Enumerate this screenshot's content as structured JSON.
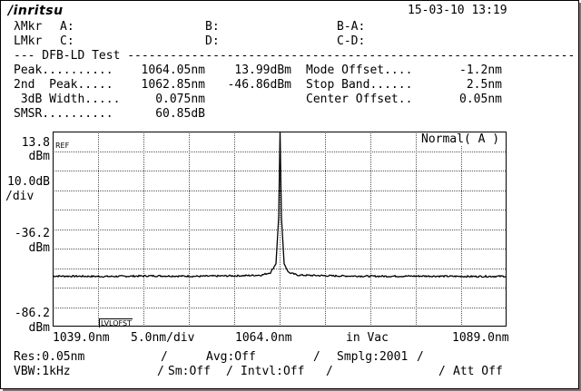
{
  "header": {
    "brand": "/inritsu",
    "datetime": "15-03-10 13:19"
  },
  "markers": {
    "lambda_label": "λMkr",
    "l_label": "LMkr",
    "a": "A:",
    "b": "B:",
    "ba": "B-A:",
    "c": "C:",
    "d": "D:",
    "cd": "C-D:"
  },
  "section_title": "--- DFB-LD Test ---------------------------------------------------------------",
  "results": {
    "peak_label": "Peak..........",
    "peak_wl": "1064.05nm",
    "peak_lvl": "13.99dBm",
    "mode_offset_label": "Mode Offset....",
    "mode_offset": "-1.2nm",
    "peak2_label": "2nd  Peak.....",
    "peak2_wl": "1062.85nm",
    "peak2_lvl": "-46.86dBm",
    "stop_band_label": "Stop Band......",
    "stop_band": "2.5nm",
    "width_label": " 3dB Width.....",
    "width": "0.075nm",
    "center_offset_label": "Center Offset..",
    "center_offset": "0.05nm",
    "smsr_label": "SMSR..........",
    "smsr": "60.85dB"
  },
  "yaxis": {
    "ref_value": "13.8",
    "ref_unit": "dBm",
    "scale_value": "10.0dB",
    "scale_unit": "/div",
    "mid_value": "-36.2",
    "mid_unit": "dBm",
    "bottom_value": "-86.2",
    "bottom_unit": "dBm"
  },
  "plot_labels": {
    "ref": "REF",
    "mode": "Normal( A )",
    "lvl_ofst": "LVLOFST"
  },
  "xaxis": {
    "start": "1039.0nm",
    "scale": "5.0nm/div",
    "center": "1064.0nm",
    "medium": "in Vac",
    "stop": "1089.0nm"
  },
  "status": {
    "res": "Res:0.05nm",
    "avg": "Avg:Off",
    "smplg": "Smplg:2001",
    "vbw": "VBW:1kHz",
    "sm": "Sm:Off",
    "intvl": "Intvl:Off",
    "att": "Att Off",
    "sep": "/"
  },
  "chart_data": {
    "type": "line",
    "xlim": [
      1039.0,
      1089.0
    ],
    "ylim": [
      -86.2,
      13.8
    ],
    "x_unit": "nm",
    "y_unit": "dBm",
    "grid": true,
    "series": [
      {
        "x": [
          1039.0,
          1045.0,
          1050.0,
          1055.0,
          1060.0,
          1062.0,
          1063.0,
          1063.6,
          1063.9,
          1064.05,
          1064.2,
          1064.5,
          1065.0,
          1066.0,
          1070.0,
          1075.0,
          1080.0,
          1085.0,
          1089.0
        ],
        "y": [
          -60.3,
          -60.5,
          -60.2,
          -60.4,
          -60.1,
          -59.8,
          -58.5,
          -54.0,
          -30.0,
          13.99,
          -30.0,
          -54.0,
          -58.5,
          -59.8,
          -60.2,
          -60.4,
          -60.3,
          -60.5,
          -60.4
        ]
      }
    ]
  }
}
